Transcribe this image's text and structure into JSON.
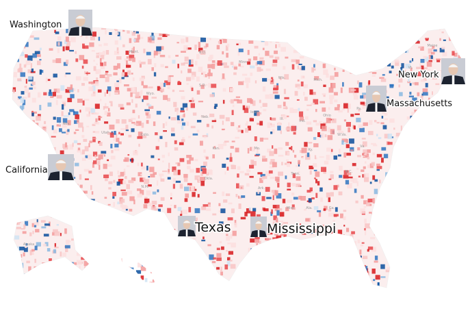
{
  "labels": [
    "Washington",
    "California",
    "New York",
    "Massachusetts",
    "Texas",
    "Mississippi"
  ],
  "state_abbreviations": [
    "Mont.",
    "N.D.",
    "Minn.",
    "S.D.",
    "Wis.",
    "Mich.",
    "Wyo.",
    "Neb.",
    "Iowa",
    "Ill.",
    "Ind.",
    "Ohio",
    "Pa.",
    "Nev.",
    "Utah",
    "Colo.",
    "Kan.",
    "Mo.",
    "Ky.",
    "W.Va.",
    "Va.",
    "N.M.",
    "Okla.",
    "Ark.",
    "Tenn.",
    "N.C.",
    "Ala.",
    "Ga.",
    "Miss.",
    "La.",
    "Alaska",
    "Maine",
    "Vt."
  ]
}
